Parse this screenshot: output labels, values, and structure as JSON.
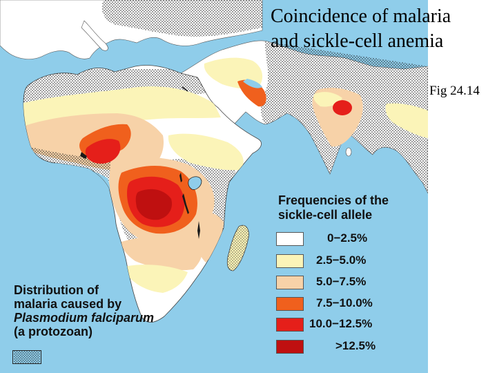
{
  "title": {
    "line1": "Coincidence of malaria",
    "line2": "and sickle-cell anemia"
  },
  "figure_label": "Fig 24.14",
  "sickle_cell_legend": {
    "heading_line1": "Frequencies of the",
    "heading_line2": "sickle-cell allele",
    "entries": [
      {
        "label": "0−2.5%",
        "color": "#ffffff"
      },
      {
        "label": "2.5−5.0%",
        "color": "#fbf4b8"
      },
      {
        "label": "5.0−7.5%",
        "color": "#f7d2a8"
      },
      {
        "label": "7.5−10.0%",
        "color": "#f0601d"
      },
      {
        "label": "10.0−12.5%",
        "color": "#e51f1a"
      },
      {
        "label": ">12.5%",
        "color": "#bf1010"
      }
    ]
  },
  "malaria_legend": {
    "line1": "Distribution of",
    "line2": "malaria caused by",
    "line3": "Plasmodium falciparum",
    "line4": "(a protozoan)",
    "pattern": "stippled-dots"
  },
  "map_colors": {
    "ocean": "#8fcdea",
    "land": "#ffffff"
  }
}
